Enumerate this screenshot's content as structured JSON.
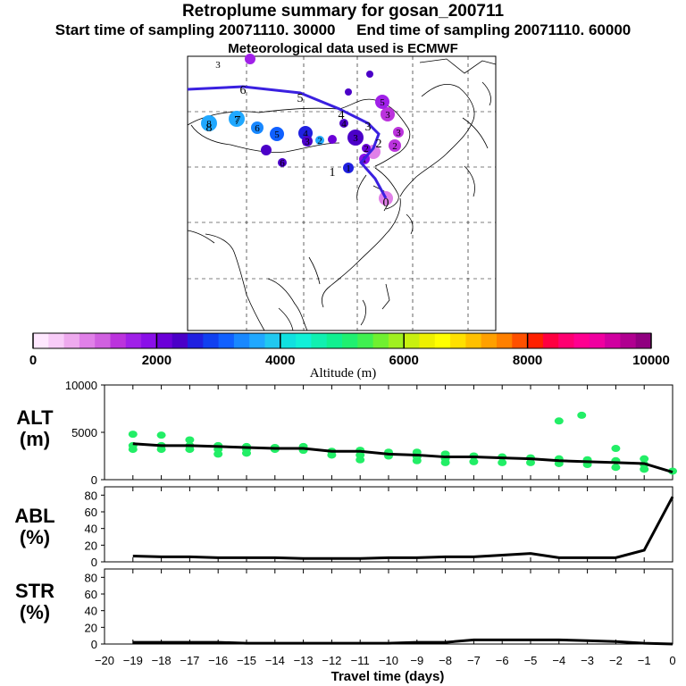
{
  "header": {
    "title": "Retroplume summary for gosan_200711",
    "subtitle_start": "Start time of sampling 20071110. 30000",
    "subtitle_end": "End time of sampling 20071110. 60000",
    "met_note": "Meteorological data used is ECMWF"
  },
  "colorbar": {
    "label": "Altitude (m)",
    "tick_labels": [
      "0",
      "2000",
      "4000",
      "6000",
      "8000",
      "10000"
    ],
    "range": [
      0,
      10000
    ],
    "colors": [
      "#ffe8ff",
      "#f8ccf8",
      "#eeaaee",
      "#e080e8",
      "#d060e0",
      "#bb33dd",
      "#a020e8",
      "#8a10e8",
      "#6b00d8",
      "#4b00c8",
      "#2020e0",
      "#1040f0",
      "#1060ff",
      "#1888ff",
      "#20a8ff",
      "#20c8f0",
      "#10e0e0",
      "#10f0d8",
      "#10f0b0",
      "#10f090",
      "#20f070",
      "#40f050",
      "#70f030",
      "#a0f020",
      "#c8f010",
      "#eef000",
      "#ffff00",
      "#ffe000",
      "#ffc000",
      "#ffa000",
      "#ff8000",
      "#ff5000",
      "#ff2000",
      "#ff0040",
      "#ff0070",
      "#ff0090",
      "#f000a0",
      "#d000a0",
      "#b00090",
      "#900080"
    ]
  },
  "map": {
    "track_start_label": "0",
    "track_day_labels": [
      "0",
      "1",
      "2",
      "3",
      "4",
      "5",
      "6",
      "7",
      "8"
    ],
    "cluster_labels": [
      "1",
      "2",
      "3",
      "4",
      "5",
      "6",
      "7",
      "8",
      "3",
      "2",
      "1",
      "2",
      "3",
      "4",
      "5",
      "6",
      "3"
    ]
  },
  "panels": {
    "alt": {
      "label_line1": "ALT",
      "label_line2": "(m)",
      "tick_labels": [
        "10000",
        "5000",
        "0"
      ]
    },
    "abl": {
      "label_line1": "ABL",
      "label_line2": "(%)",
      "tick_labels": [
        "80",
        "60",
        "40",
        "20",
        "0"
      ]
    },
    "str": {
      "label_line1": "STR",
      "label_line2": "(%)",
      "tick_labels": [
        "80",
        "60",
        "40",
        "20",
        "0"
      ]
    }
  },
  "xaxis": {
    "label": "Travel time (days)",
    "tick_labels": [
      "−20",
      "−19",
      "−18",
      "−17",
      "−16",
      "−15",
      "−14",
      "−13",
      "−12",
      "−11",
      "−10",
      "−9",
      "−8",
      "−7",
      "−6",
      "−5",
      "−4",
      "−3",
      "−2",
      "−1",
      "0"
    ]
  },
  "chart_data": [
    {
      "type": "line",
      "title": "ALT",
      "xlabel": "Travel time (days)",
      "ylabel": "ALT (m)",
      "xlim": [
        -20,
        0
      ],
      "ylim": [
        0,
        10000
      ],
      "series": [
        {
          "name": "mean altitude",
          "x": [
            -19,
            -18,
            -17,
            -16,
            -15,
            -14,
            -13,
            -12,
            -11,
            -10,
            -9,
            -8,
            -7,
            -6,
            -5,
            -4,
            -3,
            -2,
            -1,
            0
          ],
          "values": [
            3800,
            3600,
            3600,
            3500,
            3400,
            3300,
            3300,
            3000,
            3000,
            2700,
            2600,
            2400,
            2400,
            2300,
            2200,
            2000,
            1900,
            1800,
            1700,
            800
          ]
        },
        {
          "name": "cluster altitudes",
          "points": [
            [
              -19,
              4800
            ],
            [
              -19,
              3600
            ],
            [
              -19,
              3200
            ],
            [
              -18,
              4700
            ],
            [
              -18,
              3600
            ],
            [
              -18,
              3200
            ],
            [
              -17,
              4200
            ],
            [
              -17,
              3600
            ],
            [
              -17,
              3200
            ],
            [
              -16,
              3600
            ],
            [
              -16,
              3200
            ],
            [
              -16,
              2700
            ],
            [
              -15,
              3500
            ],
            [
              -15,
              3200
            ],
            [
              -15,
              2800
            ],
            [
              -14,
              3400
            ],
            [
              -14,
              3200
            ],
            [
              -13,
              3500
            ],
            [
              -13,
              3100
            ],
            [
              -12,
              3000
            ],
            [
              -12,
              2600
            ],
            [
              -11,
              3100
            ],
            [
              -11,
              2600
            ],
            [
              -11,
              2100
            ],
            [
              -10,
              2900
            ],
            [
              -10,
              2500
            ],
            [
              -9,
              2900
            ],
            [
              -9,
              2400
            ],
            [
              -9,
              2000
            ],
            [
              -8,
              2700
            ],
            [
              -8,
              2200
            ],
            [
              -8,
              1800
            ],
            [
              -7,
              2500
            ],
            [
              -7,
              1900
            ],
            [
              -6,
              2400
            ],
            [
              -6,
              1800
            ],
            [
              -5,
              2300
            ],
            [
              -5,
              1800
            ],
            [
              -4,
              2200
            ],
            [
              -4,
              1700
            ],
            [
              -3,
              2100
            ],
            [
              -3,
              1600
            ],
            [
              -2,
              3300
            ],
            [
              -2,
              2000
            ],
            [
              -2,
              1300
            ],
            [
              -1,
              2200
            ],
            [
              -1,
              1600
            ],
            [
              -1,
              1100
            ],
            [
              0,
              900
            ],
            [
              -3.2,
              6800
            ],
            [
              -4,
              6200
            ]
          ]
        }
      ]
    },
    {
      "type": "line",
      "title": "ABL",
      "xlabel": "Travel time (days)",
      "ylabel": "ABL (%)",
      "xlim": [
        -20,
        0
      ],
      "ylim": [
        0,
        90
      ],
      "series": [
        {
          "name": "ABL fraction",
          "x": [
            -19,
            -18,
            -17,
            -16,
            -15,
            -14,
            -13,
            -12,
            -11,
            -10,
            -9,
            -8,
            -7,
            -6,
            -5,
            -4,
            -3,
            -2,
            -1,
            0
          ],
          "values": [
            7,
            6,
            6,
            5,
            5,
            5,
            4,
            4,
            4,
            5,
            5,
            6,
            6,
            8,
            10,
            5,
            5,
            5,
            14,
            78
          ]
        }
      ]
    },
    {
      "type": "line",
      "title": "STR",
      "xlabel": "Travel time (days)",
      "ylabel": "STR (%)",
      "xlim": [
        -20,
        0
      ],
      "ylim": [
        0,
        90
      ],
      "series": [
        {
          "name": "stratospheric fraction",
          "x": [
            -19,
            -18,
            -17,
            -16,
            -15,
            -14,
            -13,
            -12,
            -11,
            -10,
            -9,
            -8,
            -7,
            -6,
            -5,
            -4,
            -3,
            -2,
            -1,
            0
          ],
          "values": [
            2,
            2,
            2,
            2,
            1,
            1,
            1,
            1,
            1,
            1,
            2,
            2,
            5,
            5,
            5,
            5,
            4,
            3,
            1,
            0
          ]
        }
      ]
    }
  ]
}
